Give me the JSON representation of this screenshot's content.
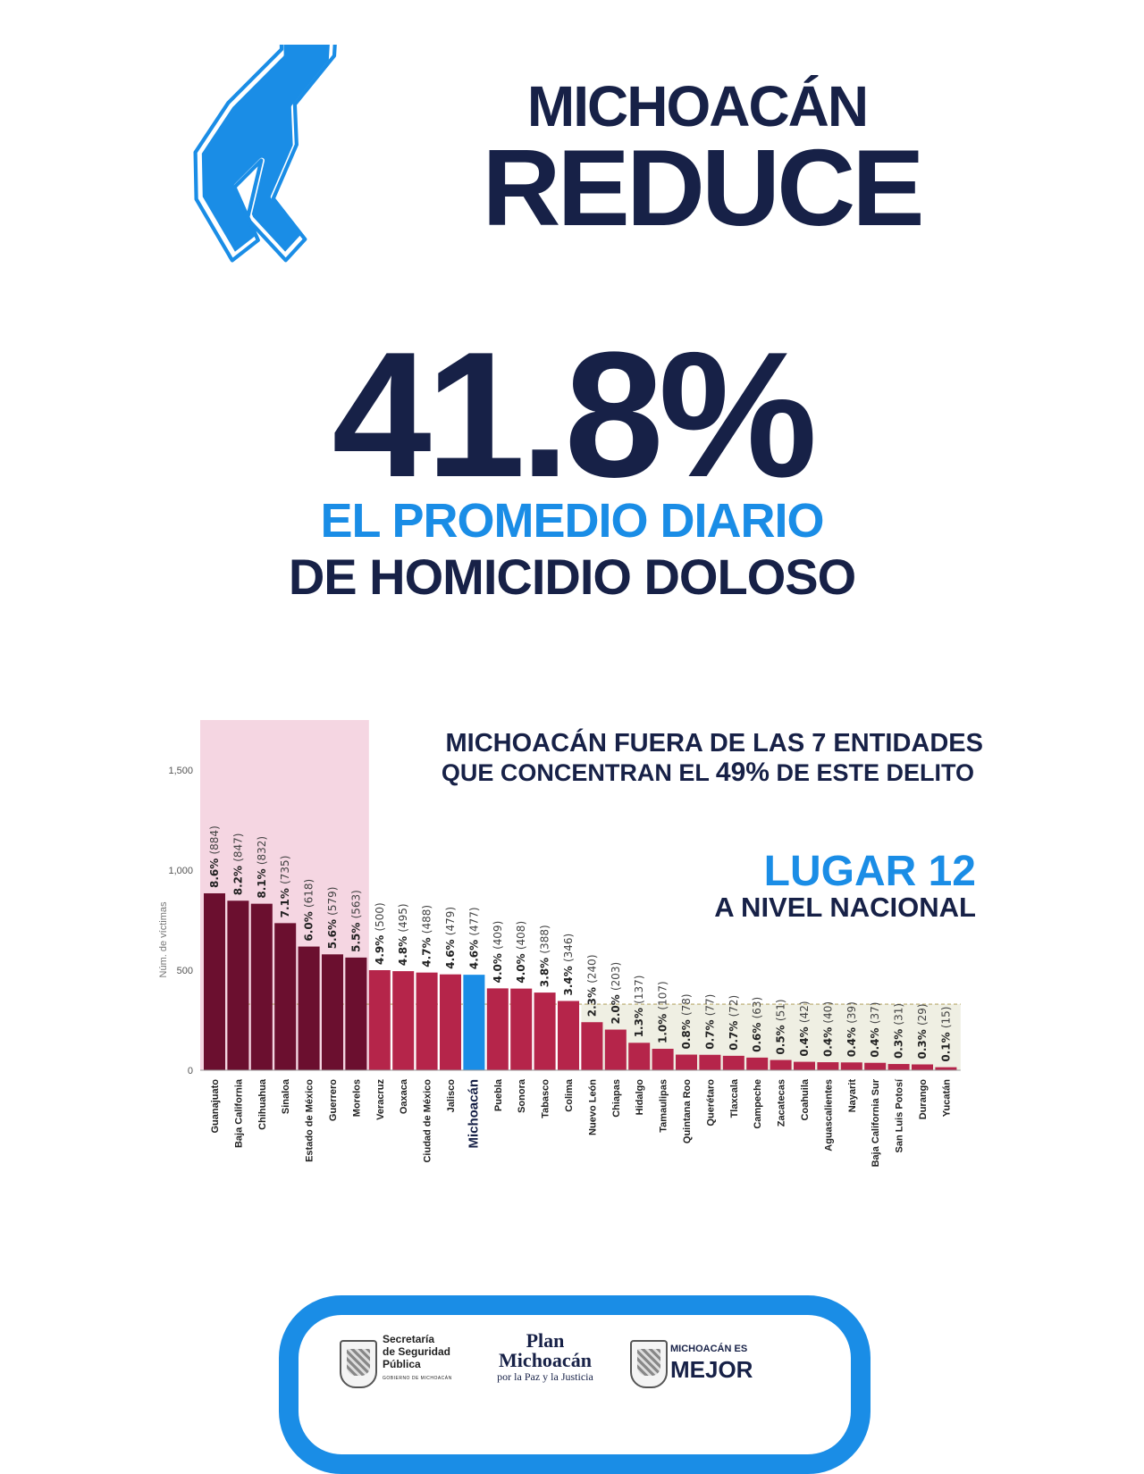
{
  "header": {
    "title_line1": "MICHOACÁN",
    "title_line2": "REDUCE",
    "icon": "body-outline-icon"
  },
  "headline": {
    "percent": "41.8%",
    "line1": "EL PROMEDIO DIARIO",
    "line2": "DE HOMICIDIO DOLOSO"
  },
  "annotations": {
    "top_line1": "MICHOACÁN FUERA DE LAS 7 ENTIDADES",
    "top_line2_pre": "QUE CONCENTRAN EL ",
    "top_line2_bold": "49%",
    "top_line2_post": " DE ESTE DELITO",
    "rank_line1": "LUGAR 12",
    "rank_line2": "A NIVEL NACIONAL"
  },
  "colors": {
    "navy": "#172147",
    "blue": "#1a8de6",
    "top7": "#6b0f2f",
    "rest": "#b5254a",
    "highlight_bg": "#f5d6e2",
    "lower_band": "#efefe3"
  },
  "chart_data": {
    "type": "bar",
    "ylabel": "Núm. de víctimas",
    "ylim": [
      0,
      1750
    ],
    "yticks": [
      0,
      500,
      1000,
      1500
    ],
    "ytick_labels": [
      "0",
      "500",
      "1,000",
      "1,500"
    ],
    "reference_line": 330,
    "highlight_first_n": 7,
    "highlight_category": "Michoacán",
    "categories": [
      "Guanajuato",
      "Baja California",
      "Chihuahua",
      "Sinaloa",
      "Estado de México",
      "Guerrero",
      "Morelos",
      "Veracruz",
      "Oaxaca",
      "Ciudad de México",
      "Jalisco",
      "Michoacán",
      "Puebla",
      "Sonora",
      "Tabasco",
      "Colima",
      "Nuevo León",
      "Chiapas",
      "Hidalgo",
      "Tamaulipas",
      "Quintana Roo",
      "Querétaro",
      "Tlaxcala",
      "Campeche",
      "Zacatecas",
      "Coahuila",
      "Aguascalientes",
      "Nayarit",
      "Baja California Sur",
      "San Luis Potosí",
      "Durango",
      "Yucatán"
    ],
    "values": [
      884,
      847,
      832,
      735,
      618,
      579,
      563,
      500,
      495,
      488,
      479,
      477,
      409,
      408,
      388,
      346,
      240,
      203,
      137,
      107,
      78,
      77,
      72,
      63,
      51,
      42,
      40,
      39,
      37,
      31,
      29,
      15
    ],
    "percents": [
      "8.6%",
      "8.2%",
      "8.1%",
      "7.1%",
      "6.0%",
      "5.6%",
      "5.5%",
      "4.9%",
      "4.8%",
      "4.7%",
      "4.6%",
      "4.6%",
      "4.0%",
      "4.0%",
      "3.8%",
      "3.4%",
      "2.3%",
      "2.0%",
      "1.3%",
      "1.0%",
      "0.8%",
      "0.7%",
      "0.7%",
      "0.6%",
      "0.5%",
      "0.4%",
      "0.4%",
      "0.4%",
      "0.4%",
      "0.3%",
      "0.3%",
      "0.1%"
    ],
    "counts": [
      "(884)",
      "(847)",
      "(832)",
      "(735)",
      "(618)",
      "(579)",
      "(563)",
      "(500)",
      "(495)",
      "(488)",
      "(479)",
      "(477)",
      "(409)",
      "(408)",
      "(388)",
      "(346)",
      "(240)",
      "(203)",
      "(137)",
      "(107)",
      "(78)",
      "(77)",
      "(72)",
      "(63)",
      "(51)",
      "(42)",
      "(40)",
      "(39)",
      "(37)",
      "(31)",
      "(29)",
      "(15)"
    ]
  },
  "footer": {
    "logo1_line1": "Secretaría",
    "logo1_line2": "de Seguridad",
    "logo1_line3": "Pública",
    "logo1_small": "GOBIERNO DE MICHOACÁN",
    "logo2_line1": "Plan",
    "logo2_line2": "Michoacán",
    "logo2_line3": "por la Paz y la Justicia",
    "logo3_line1": "MICHOACÁN ES",
    "logo3_line2": "MEJOR"
  }
}
